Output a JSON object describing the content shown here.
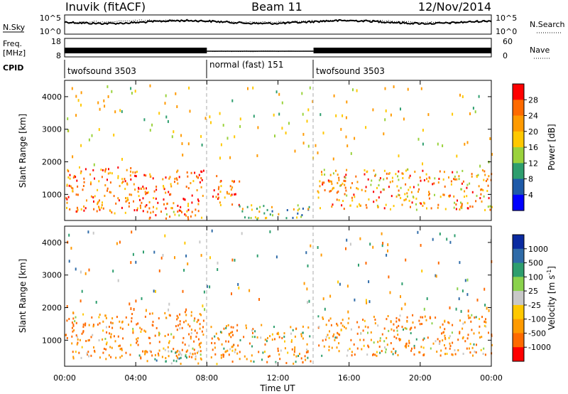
{
  "header": {
    "title": "Inuvik (fitACF)",
    "beam": "Beam 11",
    "date": "12/Nov/2014"
  },
  "noise_panel": {
    "left_label": "N.Sky",
    "right_label": "N.Search",
    "left_ticks": [
      "10^5",
      "10^0"
    ],
    "right_ticks": [
      "10^5",
      "10^0"
    ]
  },
  "freq_panel": {
    "left_label": "Freq.",
    "left_unit": "[MHz]",
    "right_label": "Nave",
    "left_ticks": [
      "18",
      "8"
    ],
    "right_ticks": [
      "60",
      "0"
    ]
  },
  "cpid_panel": {
    "label": "CPID",
    "segments": [
      {
        "name": "twofsound 3503",
        "start_hour": 0,
        "end_hour": 8
      },
      {
        "name": "normal (fast) 151",
        "start_hour": 8,
        "end_hour": 14
      },
      {
        "name": "twofsound 3503",
        "start_hour": 14,
        "end_hour": 24
      }
    ]
  },
  "x_axis": {
    "label": "Time UT",
    "ticks": [
      "00:00",
      "04:00",
      "08:00",
      "12:00",
      "16:00",
      "20:00",
      "00:00"
    ],
    "range_hours": [
      0,
      24
    ]
  },
  "power_colorbar": {
    "label": "Power [dB]",
    "ticks": [
      "28",
      "24",
      "20",
      "16",
      "12",
      "8",
      "4"
    ],
    "colors": [
      "#ff0000",
      "#ff6a00",
      "#ff9a00",
      "#ffc800",
      "#9ad23c",
      "#2e9e6e",
      "#1e5aa8",
      "#0000ff"
    ]
  },
  "velocity_colorbar": {
    "label": "Velocity [m s",
    "label_superscript": "-1",
    "label_close": "]",
    "ticks": [
      "1000",
      "500",
      "100",
      "25",
      "-25",
      "-100",
      "-500",
      "-1000"
    ],
    "colors": [
      "#0a2aa0",
      "#2f6ba8",
      "#2e9e6e",
      "#8ad24c",
      "#c8c8c8",
      "#ffc800",
      "#ff9a00",
      "#ff6a00",
      "#ff0000"
    ]
  },
  "chart_data": {
    "type": "heatmap",
    "x_unit": "hours UT",
    "xlim": [
      0,
      24
    ],
    "ylim": [
      200,
      4500
    ],
    "ylabel": "Slant Range [km]",
    "y_ticks": [
      1000,
      2000,
      3000,
      4000
    ],
    "mode_boundaries_hours": [
      8,
      14
    ],
    "panels": [
      {
        "name": "power",
        "regions": [
          {
            "t0": 0,
            "t1": 3.8,
            "r0": 450,
            "r1": 1900,
            "level": 24
          },
          {
            "t0": 3.8,
            "t1": 7.8,
            "r0": 500,
            "r1": 1800,
            "level": 26
          },
          {
            "t0": 4.5,
            "t1": 7.8,
            "r0": 250,
            "r1": 600,
            "level": 22
          },
          {
            "t0": 8.2,
            "t1": 9.8,
            "r0": 700,
            "r1": 1600,
            "level": 24
          },
          {
            "t0": 9.8,
            "t1": 13.8,
            "r0": 250,
            "r1": 700,
            "level": 14
          },
          {
            "t0": 14.2,
            "t1": 24,
            "r0": 550,
            "r1": 1800,
            "level": 22
          }
        ]
      },
      {
        "name": "velocity",
        "regions": [
          {
            "t0": 0,
            "t1": 7.8,
            "r0": 450,
            "r1": 1900,
            "level": -300
          },
          {
            "t0": 4,
            "t1": 7.8,
            "r0": 300,
            "r1": 700,
            "level": 0
          },
          {
            "t0": 8.2,
            "t1": 13.8,
            "r0": 300,
            "r1": 1500,
            "level": -150
          },
          {
            "t0": 14.2,
            "t1": 24,
            "r0": 550,
            "r1": 1800,
            "level": -250
          }
        ]
      }
    ]
  }
}
